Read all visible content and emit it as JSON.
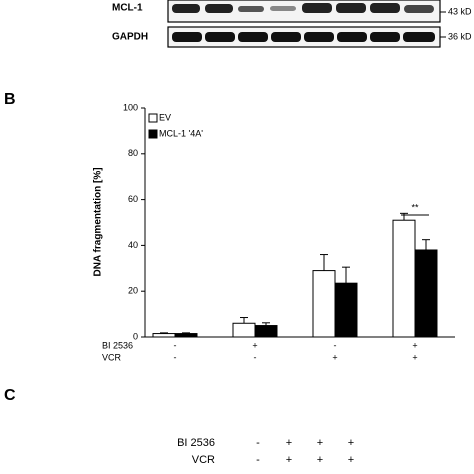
{
  "panel_a": {
    "labels": [
      "MCL-1",
      "GAPDH"
    ],
    "sizes": [
      "43 kD",
      "36 kD"
    ]
  },
  "panel_b": {
    "letter": "B"
  },
  "chart_data": {
    "type": "bar",
    "ylabel": "DNA fragmentation [%]",
    "categories": [
      null,
      null,
      null,
      null
    ],
    "series": [
      {
        "name": "EV",
        "color": "#ffffff",
        "values": [
          1.5,
          6,
          29,
          51
        ],
        "errors": [
          0.3,
          2.5,
          7,
          3
        ]
      },
      {
        "name": "MCL-1 '4A'",
        "color": "#000000",
        "values": [
          1.5,
          5,
          23.5,
          38
        ],
        "errors": [
          0.3,
          1.2,
          7,
          4.5
        ]
      }
    ],
    "conditions": [
      {
        "label": "BI 2536",
        "signs": [
          "-",
          "+",
          "-",
          "+"
        ]
      },
      {
        "label": "VCR",
        "signs": [
          "-",
          "-",
          "+",
          "+"
        ]
      }
    ],
    "annotation": "**",
    "ylim": [
      0,
      100
    ],
    "yticks": [
      0,
      20,
      40,
      60,
      80,
      100
    ],
    "grid": false,
    "legend": "top-left"
  },
  "panel_c": {
    "letter": "C",
    "rows": [
      {
        "label": "BI 2536",
        "signs": [
          "-",
          "+",
          "+",
          "+"
        ]
      },
      {
        "label": "VCR",
        "signs": [
          "-",
          "+",
          "+",
          "+"
        ]
      }
    ]
  }
}
